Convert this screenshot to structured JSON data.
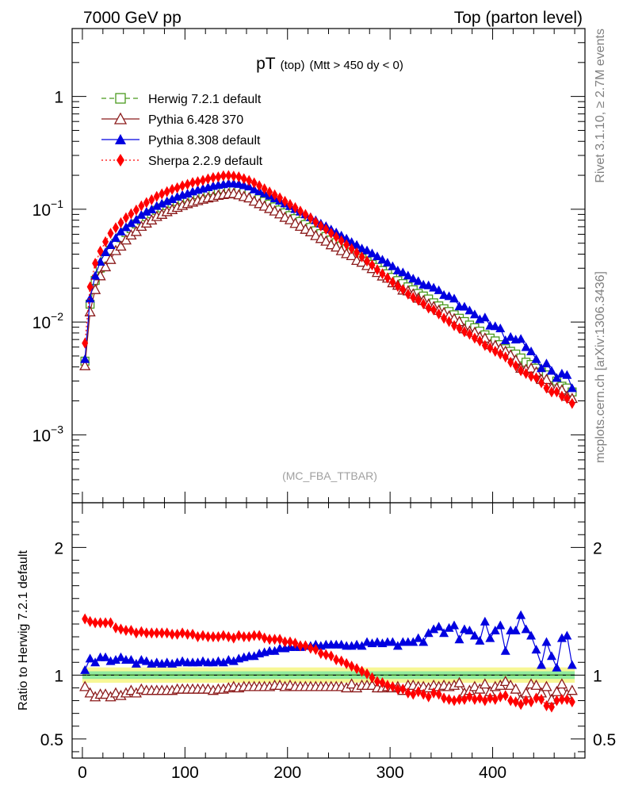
{
  "header": {
    "left": "7000 GeV pp",
    "right": "Top (parton level)"
  },
  "title": {
    "main": "pT",
    "sub1": "(top)",
    "sub2": "(Mtt > 450 dy < 0)"
  },
  "side_labels": {
    "rivet": "Rivet 3.1.10, ≥ 2.7M events",
    "mcplots": "mcplots.cern.ch [arXiv:1306.3436]"
  },
  "watermark": "(MC_FBA_TTBAR)",
  "ratio_ylabel": "Ratio to Herwig 7.2.1 default",
  "colors": {
    "herwig": "#4a9a1e",
    "pythia6": "#8b1a1a",
    "pythia8": "#0000e0",
    "sherpa": "#ff0000",
    "band_inner": "#7fe8a0",
    "band_outer": "#f5f57a"
  },
  "chart_data": [
    {
      "type": "line",
      "scale": "log",
      "xlim": [
        -10,
        490
      ],
      "ylim": [
        0.00025,
        4
      ],
      "x_ticks": [
        "0",
        "100",
        "200",
        "300",
        "400"
      ],
      "y_ticks": [
        {
          "value": 1,
          "base": "1",
          "exp": ""
        },
        {
          "value": 0.1,
          "base": "10",
          "exp": "−1"
        },
        {
          "value": 0.01,
          "base": "10",
          "exp": "−2"
        },
        {
          "value": 0.001,
          "base": "10",
          "exp": "−3"
        }
      ],
      "x": [
        2.5,
        7.5,
        12.5,
        17.5,
        22.5,
        27.5,
        32.5,
        37.5,
        42.5,
        47.5,
        52.5,
        57.5,
        62.5,
        67.5,
        72.5,
        77.5,
        82.5,
        87.5,
        92.5,
        97.5,
        102.5,
        107.5,
        112.5,
        117.5,
        122.5,
        127.5,
        132.5,
        137.5,
        142.5,
        147.5,
        152.5,
        157.5,
        162.5,
        167.5,
        172.5,
        177.5,
        182.5,
        187.5,
        192.5,
        197.5,
        202.5,
        207.5,
        212.5,
        217.5,
        222.5,
        227.5,
        232.5,
        237.5,
        242.5,
        247.5,
        252.5,
        257.5,
        262.5,
        267.5,
        272.5,
        277.5,
        282.5,
        287.5,
        292.5,
        297.5,
        302.5,
        307.5,
        312.5,
        317.5,
        322.5,
        327.5,
        332.5,
        337.5,
        342.5,
        347.5,
        352.5,
        357.5,
        362.5,
        367.5,
        372.5,
        377.5,
        382.5,
        387.5,
        392.5,
        397.5,
        402.5,
        407.5,
        412.5,
        417.5,
        422.5,
        427.5,
        432.5,
        437.5,
        442.5,
        447.5,
        452.5,
        457.5,
        462.5,
        467.5,
        472.5,
        477.5
      ],
      "series": [
        {
          "name": "Herwig 7.2.1 default",
          "key": "herwig",
          "marker": "open-square",
          "dash": "6,4",
          "values": [
            0.0045,
            0.0144,
            0.0234,
            0.0301,
            0.0365,
            0.0434,
            0.0499,
            0.0558,
            0.0622,
            0.0673,
            0.0741,
            0.0797,
            0.0858,
            0.0912,
            0.0978,
            0.1028,
            0.1077,
            0.1131,
            0.1171,
            0.1214,
            0.1255,
            0.1304,
            0.1346,
            0.1377,
            0.1424,
            0.1462,
            0.1489,
            0.1514,
            0.1524,
            0.1522,
            0.1484,
            0.1432,
            0.1379,
            0.1302,
            0.1234,
            0.1173,
            0.111,
            0.1049,
            0.0985,
            0.0929,
            0.0878,
            0.0826,
            0.0779,
            0.0732,
            0.0691,
            0.0644,
            0.0608,
            0.0573,
            0.0534,
            0.0505,
            0.0472,
            0.0446,
            0.0418,
            0.0391,
            0.0367,
            0.0344,
            0.0325,
            0.0305,
            0.0286,
            0.0268,
            0.0249,
            0.0233,
            0.0219,
            0.0205,
            0.0193,
            0.0179,
            0.017,
            0.016,
            0.0148,
            0.0139,
            0.0131,
            0.0124,
            0.0116,
            0.0108,
            0.0101,
            0.0094,
            0.0089,
            0.0083,
            0.0077,
            0.0072,
            0.0068,
            0.0063,
            0.0058,
            0.0055,
            0.0052,
            0.0048,
            0.0044,
            0.0042,
            0.0039,
            0.0036,
            0.0034,
            0.0032,
            0.003,
            0.0027,
            0.0026,
            0.0024
          ]
        },
        {
          "name": "Pythia 6.428 370",
          "key": "pythia6",
          "marker": "open-triangle",
          "dash": "",
          "values": [
            0.0041,
            0.0123,
            0.0194,
            0.0257,
            0.0309,
            0.0359,
            0.043,
            0.0471,
            0.0534,
            0.0591,
            0.0635,
            0.0706,
            0.0754,
            0.0803,
            0.0863,
            0.0901,
            0.0952,
            0.0993,
            0.1039,
            0.108,
            0.1121,
            0.1156,
            0.1193,
            0.1227,
            0.126,
            0.1284,
            0.1328,
            0.1349,
            0.137,
            0.138,
            0.1341,
            0.1296,
            0.1261,
            0.1178,
            0.1121,
            0.1065,
            0.1015,
            0.0964,
            0.0909,
            0.0848,
            0.0807,
            0.0749,
            0.0706,
            0.0664,
            0.0631,
            0.0584,
            0.055,
            0.0521,
            0.0484,
            0.0462,
            0.0429,
            0.0404,
            0.0388,
            0.0352,
            0.0339,
            0.0317,
            0.0298,
            0.0275,
            0.0256,
            0.0245,
            0.0223,
            0.0212,
            0.0192,
            0.0189,
            0.0177,
            0.0163,
            0.0155,
            0.0144,
            0.0137,
            0.0127,
            0.0121,
            0.0113,
            0.0107,
            0.0101,
            0.0087,
            0.0083,
            0.0081,
            0.0074,
            0.0072,
            0.0063,
            0.0062,
            0.0058,
            0.0055,
            0.0051,
            0.0046,
            0.0039,
            0.0038,
            0.0039,
            0.0036,
            0.0031,
            0.0031,
            0.0026,
            0.0026,
            0.0025,
            0.0022,
            0.0021
          ]
        },
        {
          "name": "Pythia 8.308 default",
          "key": "pythia8",
          "marker": "filled-triangle",
          "dash": "",
          "values": [
            0.0047,
            0.0162,
            0.0258,
            0.0343,
            0.0416,
            0.0482,
            0.0557,
            0.0635,
            0.0694,
            0.0754,
            0.0811,
            0.0893,
            0.0952,
            0.0998,
            0.1072,
            0.1124,
            0.1181,
            0.1233,
            0.1293,
            0.1342,
            0.1381,
            0.144,
            0.1486,
            0.1526,
            0.1571,
            0.1611,
            0.1646,
            0.1668,
            0.1701,
            0.1693,
            0.168,
            0.1634,
            0.1592,
            0.1502,
            0.1448,
            0.1384,
            0.1322,
            0.1253,
            0.1193,
            0.1127,
            0.1069,
            0.1007,
            0.0954,
            0.0902,
            0.0853,
            0.08,
            0.0747,
            0.0711,
            0.0663,
            0.0624,
            0.0586,
            0.055,
            0.0513,
            0.0484,
            0.045,
            0.0433,
            0.0407,
            0.0383,
            0.0358,
            0.0337,
            0.0313,
            0.0287,
            0.0276,
            0.0259,
            0.0243,
            0.0231,
            0.0215,
            0.0212,
            0.0202,
            0.0192,
            0.0174,
            0.017,
            0.0162,
            0.0138,
            0.0137,
            0.0127,
            0.0117,
            0.0106,
            0.011,
            0.0093,
            0.0092,
            0.0088,
            0.0069,
            0.0074,
            0.007,
            0.0071,
            0.006,
            0.0055,
            0.0047,
            0.0039,
            0.0043,
            0.0037,
            0.0032,
            0.0035,
            0.0034,
            0.0026
          ]
        },
        {
          "name": "Sherpa 2.2.9 default",
          "key": "sherpa",
          "marker": "filled-diamond",
          "dash": "2,3",
          "values": [
            0.0065,
            0.0205,
            0.0331,
            0.0425,
            0.0515,
            0.0612,
            0.0685,
            0.076,
            0.084,
            0.0911,
            0.0985,
            0.1071,
            0.1145,
            0.1214,
            0.1298,
            0.1368,
            0.143,
            0.1498,
            0.1549,
            0.1612,
            0.1662,
            0.1724,
            0.1755,
            0.1802,
            0.1856,
            0.1908,
            0.1935,
            0.1982,
            0.1988,
            0.1966,
            0.1938,
            0.1866,
            0.1799,
            0.1712,
            0.1615,
            0.1516,
            0.1422,
            0.1342,
            0.1262,
            0.1175,
            0.1103,
            0.1032,
            0.0962,
            0.0898,
            0.0837,
            0.0771,
            0.0712,
            0.0664,
            0.0613,
            0.0568,
            0.0525,
            0.0485,
            0.0447,
            0.0411,
            0.0378,
            0.0347,
            0.032,
            0.0291,
            0.0268,
            0.0246,
            0.0226,
            0.0207,
            0.0194,
            0.0177,
            0.0165,
            0.0156,
            0.0145,
            0.0133,
            0.0128,
            0.0118,
            0.0108,
            0.0101,
            0.0093,
            0.0088,
            0.0082,
            0.0078,
            0.0072,
            0.0068,
            0.0062,
            0.0059,
            0.0055,
            0.0052,
            0.0049,
            0.0044,
            0.0041,
            0.0037,
            0.0035,
            0.0033,
            0.0032,
            0.0029,
            0.0026,
            0.0024,
            0.0024,
            0.0022,
            0.0021,
            0.0019
          ]
        }
      ]
    },
    {
      "type": "line",
      "ylim": [
        0.35,
        2.35
      ],
      "y_ticks": [
        "0.5",
        "1",
        "2"
      ],
      "reference": 1,
      "band": {
        "inner": 0.03,
        "outer": 0.06
      },
      "series": [
        {
          "name": "Pythia 6.428 370",
          "key": "pythia6",
          "values": [
            0.91,
            0.86,
            0.83,
            0.85,
            0.85,
            0.83,
            0.86,
            0.84,
            0.86,
            0.88,
            0.86,
            0.89,
            0.88,
            0.88,
            0.88,
            0.88,
            0.88,
            0.88,
            0.89,
            0.89,
            0.89,
            0.89,
            0.89,
            0.89,
            0.89,
            0.88,
            0.89,
            0.89,
            0.9,
            0.91,
            0.9,
            0.91,
            0.91,
            0.91,
            0.91,
            0.91,
            0.91,
            0.92,
            0.92,
            0.91,
            0.92,
            0.91,
            0.91,
            0.91,
            0.91,
            0.91,
            0.91,
            0.91,
            0.91,
            0.91,
            0.91,
            0.9,
            0.93,
            0.9,
            0.92,
            0.92,
            0.92,
            0.9,
            0.9,
            0.91,
            0.9,
            0.91,
            0.88,
            0.92,
            0.92,
            0.91,
            0.91,
            0.9,
            0.92,
            0.91,
            0.92,
            0.91,
            0.92,
            0.94,
            0.86,
            0.88,
            0.91,
            0.89,
            0.93,
            0.87,
            0.91,
            0.92,
            0.95,
            0.92,
            0.89,
            0.81,
            0.86,
            0.93,
            0.92,
            0.86,
            0.91,
            0.81,
            0.87,
            0.93,
            0.85,
            0.88
          ]
        },
        {
          "name": "Pythia 8.308 default",
          "key": "pythia8",
          "values": [
            1.04,
            1.13,
            1.1,
            1.14,
            1.14,
            1.11,
            1.12,
            1.14,
            1.12,
            1.12,
            1.09,
            1.12,
            1.11,
            1.09,
            1.1,
            1.09,
            1.1,
            1.09,
            1.1,
            1.11,
            1.1,
            1.1,
            1.1,
            1.11,
            1.1,
            1.1,
            1.11,
            1.1,
            1.12,
            1.11,
            1.13,
            1.14,
            1.15,
            1.15,
            1.17,
            1.18,
            1.19,
            1.19,
            1.21,
            1.21,
            1.22,
            1.22,
            1.22,
            1.23,
            1.23,
            1.24,
            1.23,
            1.24,
            1.24,
            1.24,
            1.24,
            1.23,
            1.23,
            1.24,
            1.23,
            1.26,
            1.25,
            1.26,
            1.25,
            1.26,
            1.26,
            1.23,
            1.26,
            1.26,
            1.26,
            1.29,
            1.26,
            1.33,
            1.36,
            1.38,
            1.33,
            1.37,
            1.39,
            1.28,
            1.36,
            1.35,
            1.31,
            1.27,
            1.42,
            1.29,
            1.35,
            1.39,
            1.19,
            1.35,
            1.35,
            1.47,
            1.36,
            1.31,
            1.2,
            1.08,
            1.26,
            1.15,
            1.06,
            1.29,
            1.31,
            1.08
          ]
        },
        {
          "name": "Sherpa 2.2.9 default",
          "key": "sherpa",
          "values": [
            1.44,
            1.42,
            1.41,
            1.41,
            1.41,
            1.41,
            1.37,
            1.36,
            1.35,
            1.35,
            1.33,
            1.34,
            1.33,
            1.33,
            1.33,
            1.33,
            1.33,
            1.32,
            1.32,
            1.33,
            1.32,
            1.32,
            1.3,
            1.31,
            1.3,
            1.3,
            1.3,
            1.31,
            1.3,
            1.29,
            1.31,
            1.3,
            1.3,
            1.31,
            1.31,
            1.29,
            1.28,
            1.28,
            1.28,
            1.26,
            1.26,
            1.25,
            1.23,
            1.23,
            1.21,
            1.2,
            1.17,
            1.16,
            1.15,
            1.12,
            1.11,
            1.09,
            1.07,
            1.05,
            1.03,
            1.01,
            0.98,
            0.95,
            0.94,
            0.92,
            0.91,
            0.89,
            0.89,
            0.86,
            0.85,
            0.87,
            0.85,
            0.83,
            0.86,
            0.85,
            0.82,
            0.81,
            0.8,
            0.81,
            0.81,
            0.83,
            0.81,
            0.82,
            0.8,
            0.82,
            0.81,
            0.83,
            0.84,
            0.8,
            0.79,
            0.77,
            0.8,
            0.79,
            0.82,
            0.81,
            0.76,
            0.75,
            0.8,
            0.81,
            0.81,
            0.79
          ]
        }
      ]
    }
  ]
}
